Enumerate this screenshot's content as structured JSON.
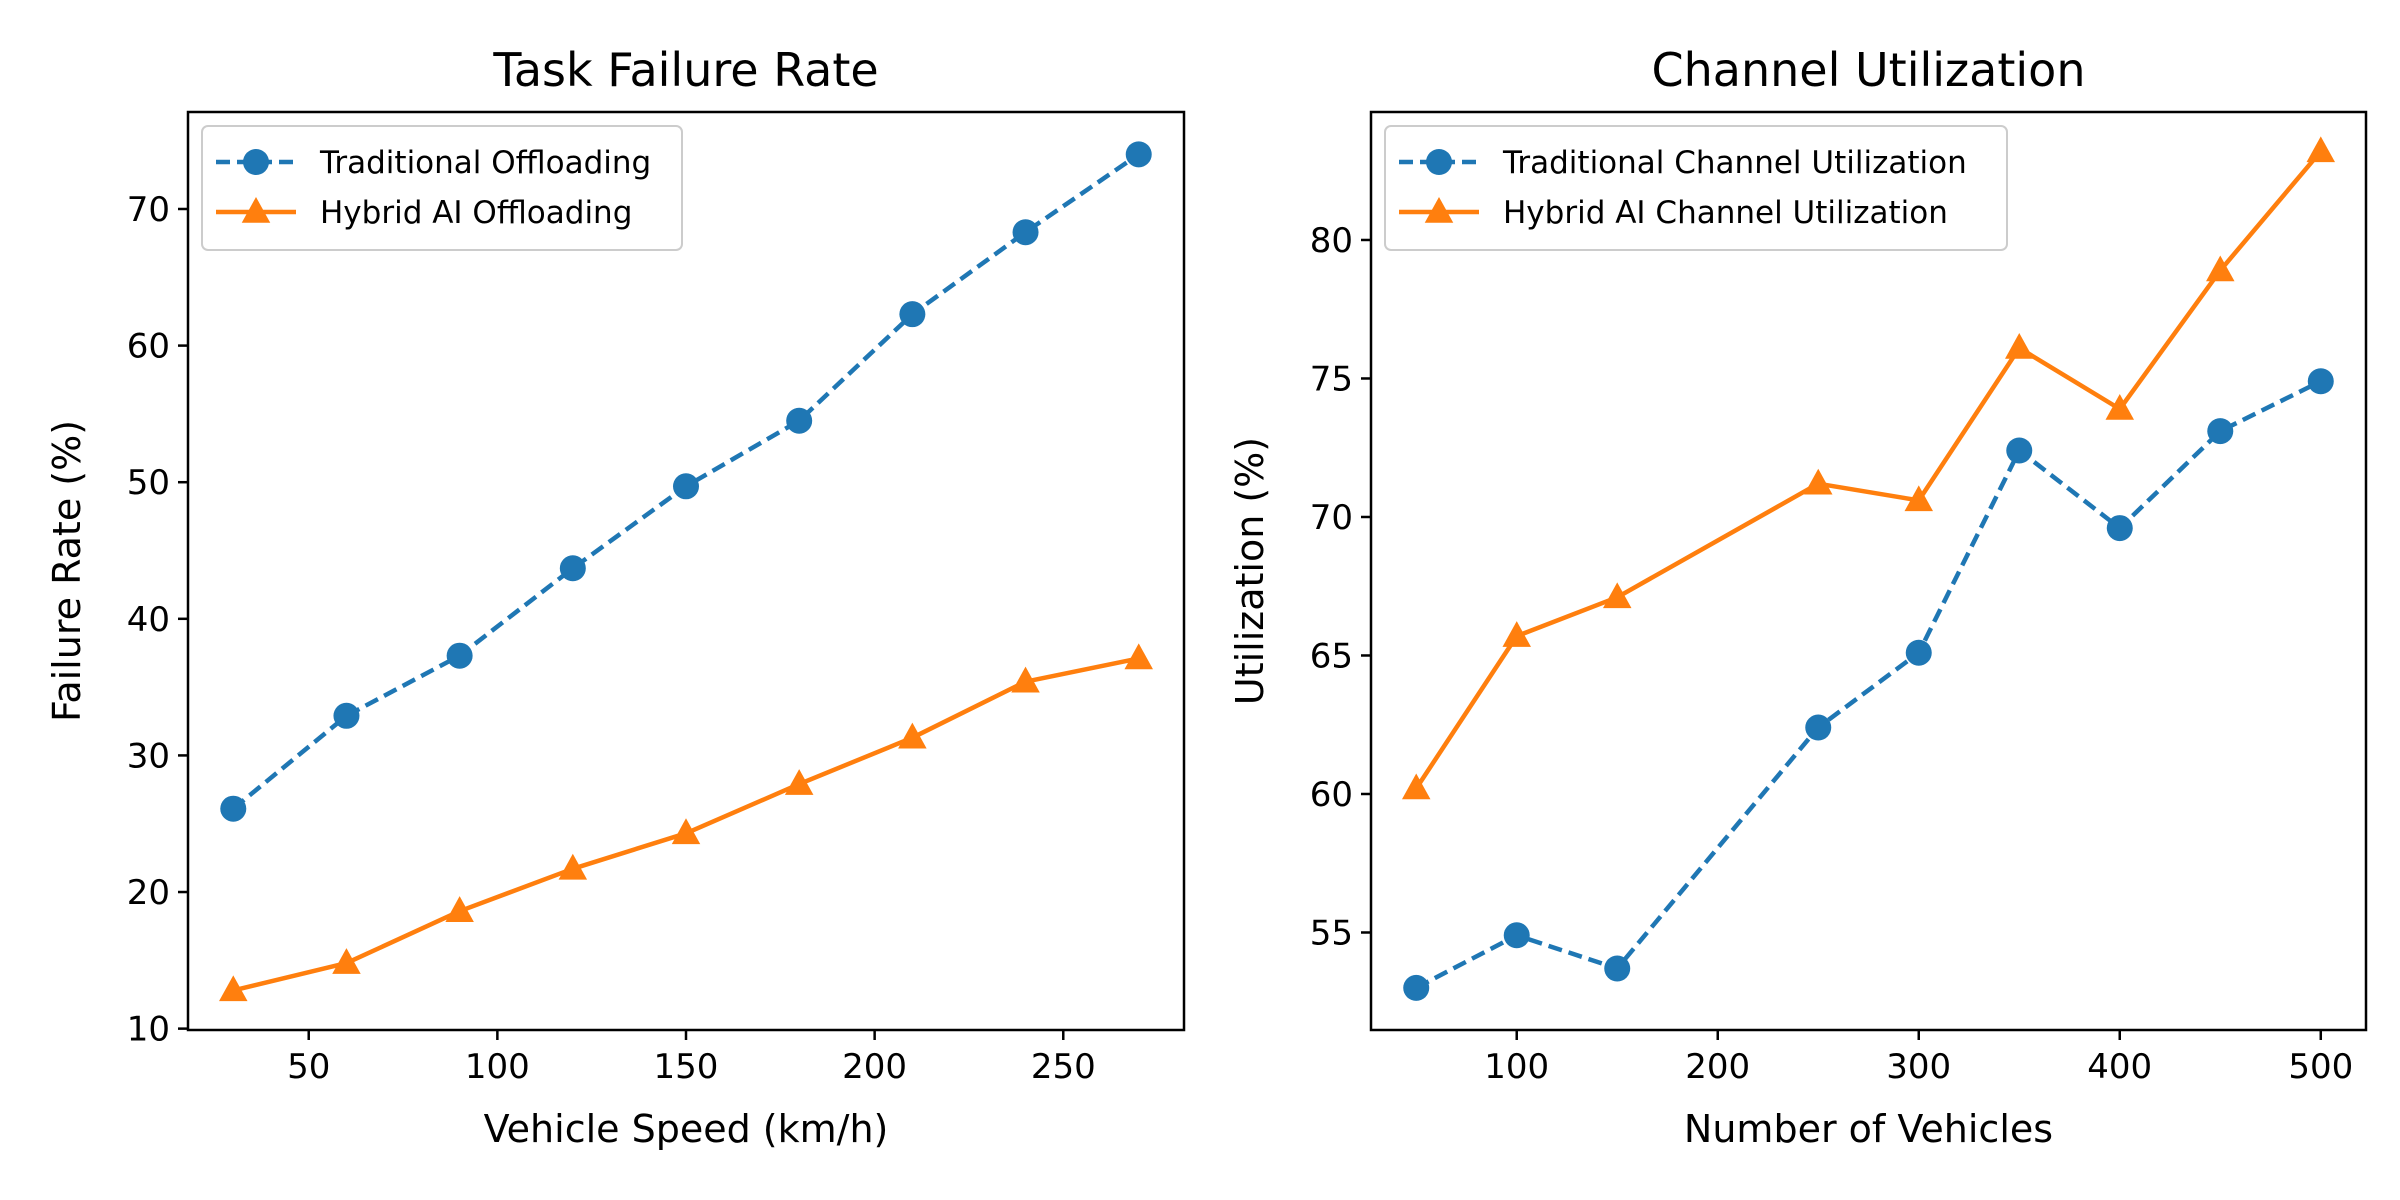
{
  "chart_data": [
    {
      "type": "line",
      "title": "Task Failure Rate",
      "xlabel": "Vehicle Speed (km/h)",
      "ylabel": "Failure Rate (%)",
      "xlim": [
        18,
        282
      ],
      "ylim": [
        9.9,
        77.1
      ],
      "xticks": [
        50,
        100,
        150,
        200,
        250
      ],
      "yticks": [
        10,
        20,
        30,
        40,
        50,
        60,
        70
      ],
      "legend_position": "upper-left",
      "x": [
        30,
        60,
        90,
        120,
        150,
        180,
        210,
        240,
        270
      ],
      "series": [
        {
          "name": "Traditional Offloading",
          "color": "#1f77b4",
          "linestyle": "dashed",
          "marker": "circle",
          "values": [
            26.1,
            32.9,
            37.3,
            43.7,
            49.7,
            54.5,
            62.3,
            68.3,
            74.0
          ]
        },
        {
          "name": "Hybrid AI Offloading",
          "color": "#ff7f0e",
          "linestyle": "solid",
          "marker": "triangle",
          "values": [
            12.8,
            14.8,
            18.6,
            21.7,
            24.3,
            27.9,
            31.3,
            35.4,
            37.1
          ]
        }
      ]
    },
    {
      "type": "line",
      "title": "Channel Utilization",
      "xlabel": "Number of Vehicles",
      "ylabel": "Utilization (%)",
      "xlim": [
        27.5,
        522.5
      ],
      "ylim": [
        51.48,
        84.62
      ],
      "xticks": [
        100,
        200,
        300,
        400,
        500
      ],
      "yticks": [
        55,
        60,
        65,
        70,
        75,
        80
      ],
      "legend_position": "upper-left",
      "x": [
        50,
        100,
        150,
        250,
        300,
        350,
        400,
        450,
        500
      ],
      "series": [
        {
          "name": "Traditional Channel Utilization",
          "color": "#1f77b4",
          "linestyle": "dashed",
          "marker": "circle",
          "values": [
            53.0,
            54.9,
            53.7,
            62.4,
            65.1,
            72.4,
            69.6,
            73.1,
            74.9
          ]
        },
        {
          "name": "Hybrid AI Channel Utilization",
          "color": "#ff7f0e",
          "linestyle": "solid",
          "marker": "triangle",
          "values": [
            60.2,
            65.7,
            67.1,
            71.2,
            70.6,
            76.1,
            73.9,
            78.9,
            83.2
          ]
        }
      ]
    }
  ]
}
